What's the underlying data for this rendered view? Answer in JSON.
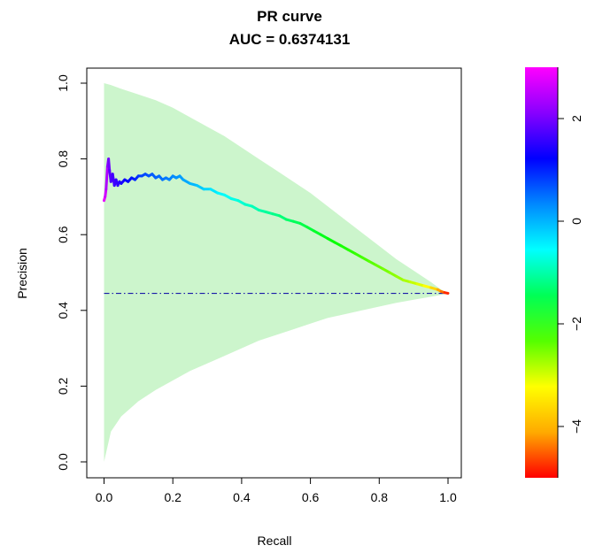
{
  "chart_data": {
    "type": "line",
    "title": "PR curve",
    "subtitle": "AUC = 0.6374131",
    "xlabel": "Recall",
    "ylabel": "Precision",
    "xlim": [
      0,
      1
    ],
    "ylim": [
      0,
      1
    ],
    "xticks": [
      "0.0",
      "0.2",
      "0.4",
      "0.6",
      "0.8",
      "1.0"
    ],
    "yticks": [
      "0.0",
      "0.2",
      "0.4",
      "0.6",
      "0.8",
      "1.0"
    ],
    "grid": false,
    "series": [
      {
        "x": [
          0.0,
          0.003,
          0.006,
          0.01,
          0.013,
          0.016,
          0.02,
          0.025,
          0.03,
          0.035,
          0.04,
          0.045,
          0.05,
          0.06,
          0.07,
          0.08,
          0.09,
          0.1,
          0.11,
          0.12,
          0.13,
          0.14,
          0.15,
          0.16,
          0.17,
          0.18,
          0.19,
          0.2,
          0.21,
          0.22,
          0.23,
          0.25,
          0.27,
          0.29,
          0.31,
          0.33,
          0.35,
          0.37,
          0.39,
          0.41,
          0.43,
          0.45,
          0.47,
          0.49,
          0.51,
          0.53,
          0.55,
          0.57,
          0.59,
          0.61,
          0.63,
          0.65,
          0.67,
          0.69,
          0.71,
          0.73,
          0.75,
          0.77,
          0.79,
          0.81,
          0.83,
          0.85,
          0.87,
          0.89,
          0.91,
          0.93,
          0.95,
          0.97,
          0.98,
          0.99,
          1.0
        ],
        "y": [
          0.69,
          0.7,
          0.72,
          0.78,
          0.8,
          0.77,
          0.74,
          0.76,
          0.73,
          0.745,
          0.73,
          0.74,
          0.735,
          0.745,
          0.74,
          0.75,
          0.745,
          0.755,
          0.755,
          0.76,
          0.755,
          0.76,
          0.75,
          0.755,
          0.745,
          0.75,
          0.745,
          0.755,
          0.75,
          0.755,
          0.745,
          0.735,
          0.73,
          0.72,
          0.72,
          0.71,
          0.705,
          0.695,
          0.69,
          0.68,
          0.675,
          0.665,
          0.66,
          0.655,
          0.65,
          0.64,
          0.635,
          0.63,
          0.62,
          0.61,
          0.6,
          0.59,
          0.58,
          0.57,
          0.56,
          0.55,
          0.54,
          0.53,
          0.52,
          0.51,
          0.5,
          0.49,
          0.48,
          0.475,
          0.47,
          0.465,
          0.46,
          0.455,
          0.45,
          0.447,
          0.445
        ],
        "color_value": [
          2.9,
          2.8,
          2.6,
          2.4,
          2.2,
          2.0,
          1.9,
          1.85,
          1.8,
          1.75,
          1.7,
          1.65,
          1.6,
          1.5,
          1.4,
          1.3,
          1.2,
          1.1,
          1.0,
          0.95,
          0.9,
          0.85,
          0.8,
          0.75,
          0.7,
          0.65,
          0.6,
          0.55,
          0.5,
          0.45,
          0.4,
          0.3,
          0.2,
          0.1,
          0.0,
          -0.1,
          -0.2,
          -0.3,
          -0.4,
          -0.5,
          -0.6,
          -0.7,
          -0.8,
          -0.9,
          -1.0,
          -1.1,
          -1.2,
          -1.3,
          -1.4,
          -1.5,
          -1.6,
          -1.7,
          -1.8,
          -1.9,
          -2.0,
          -2.1,
          -2.2,
          -2.3,
          -2.4,
          -2.5,
          -2.6,
          -2.7,
          -2.8,
          -2.95,
          -3.1,
          -3.3,
          -3.5,
          -3.8,
          -4.1,
          -4.5,
          -5.0
        ]
      }
    ],
    "confidence_band": {
      "x": [
        0.0,
        0.02,
        0.05,
        0.1,
        0.15,
        0.2,
        0.25,
        0.3,
        0.35,
        0.4,
        0.45,
        0.5,
        0.55,
        0.6,
        0.65,
        0.7,
        0.75,
        0.8,
        0.85,
        0.9,
        0.95,
        0.98,
        1.0
      ],
      "upper": [
        1.0,
        0.995,
        0.985,
        0.97,
        0.955,
        0.935,
        0.91,
        0.885,
        0.86,
        0.83,
        0.8,
        0.77,
        0.74,
        0.71,
        0.675,
        0.64,
        0.605,
        0.57,
        0.535,
        0.505,
        0.475,
        0.455,
        0.445
      ],
      "lower": [
        0.0,
        0.08,
        0.12,
        0.16,
        0.19,
        0.215,
        0.24,
        0.26,
        0.28,
        0.3,
        0.32,
        0.335,
        0.35,
        0.365,
        0.38,
        0.39,
        0.4,
        0.41,
        0.42,
        0.428,
        0.436,
        0.441,
        0.445
      ],
      "color": "#ccf5cc"
    },
    "baseline": {
      "y": 0.445,
      "color": "#1a1aa8",
      "style": "dash-dot"
    },
    "colorbar": {
      "range": [
        -5,
        3
      ],
      "ticks": [
        2,
        0,
        -2,
        -4
      ],
      "tick_labels": [
        "2",
        "0",
        "−2",
        "−4"
      ],
      "colors": [
        "#ff0000",
        "#ffaa00",
        "#ffff00",
        "#55ff00",
        "#00ff55",
        "#00ffff",
        "#0088ff",
        "#0000ff",
        "#8800ff",
        "#ff00ff"
      ]
    }
  }
}
